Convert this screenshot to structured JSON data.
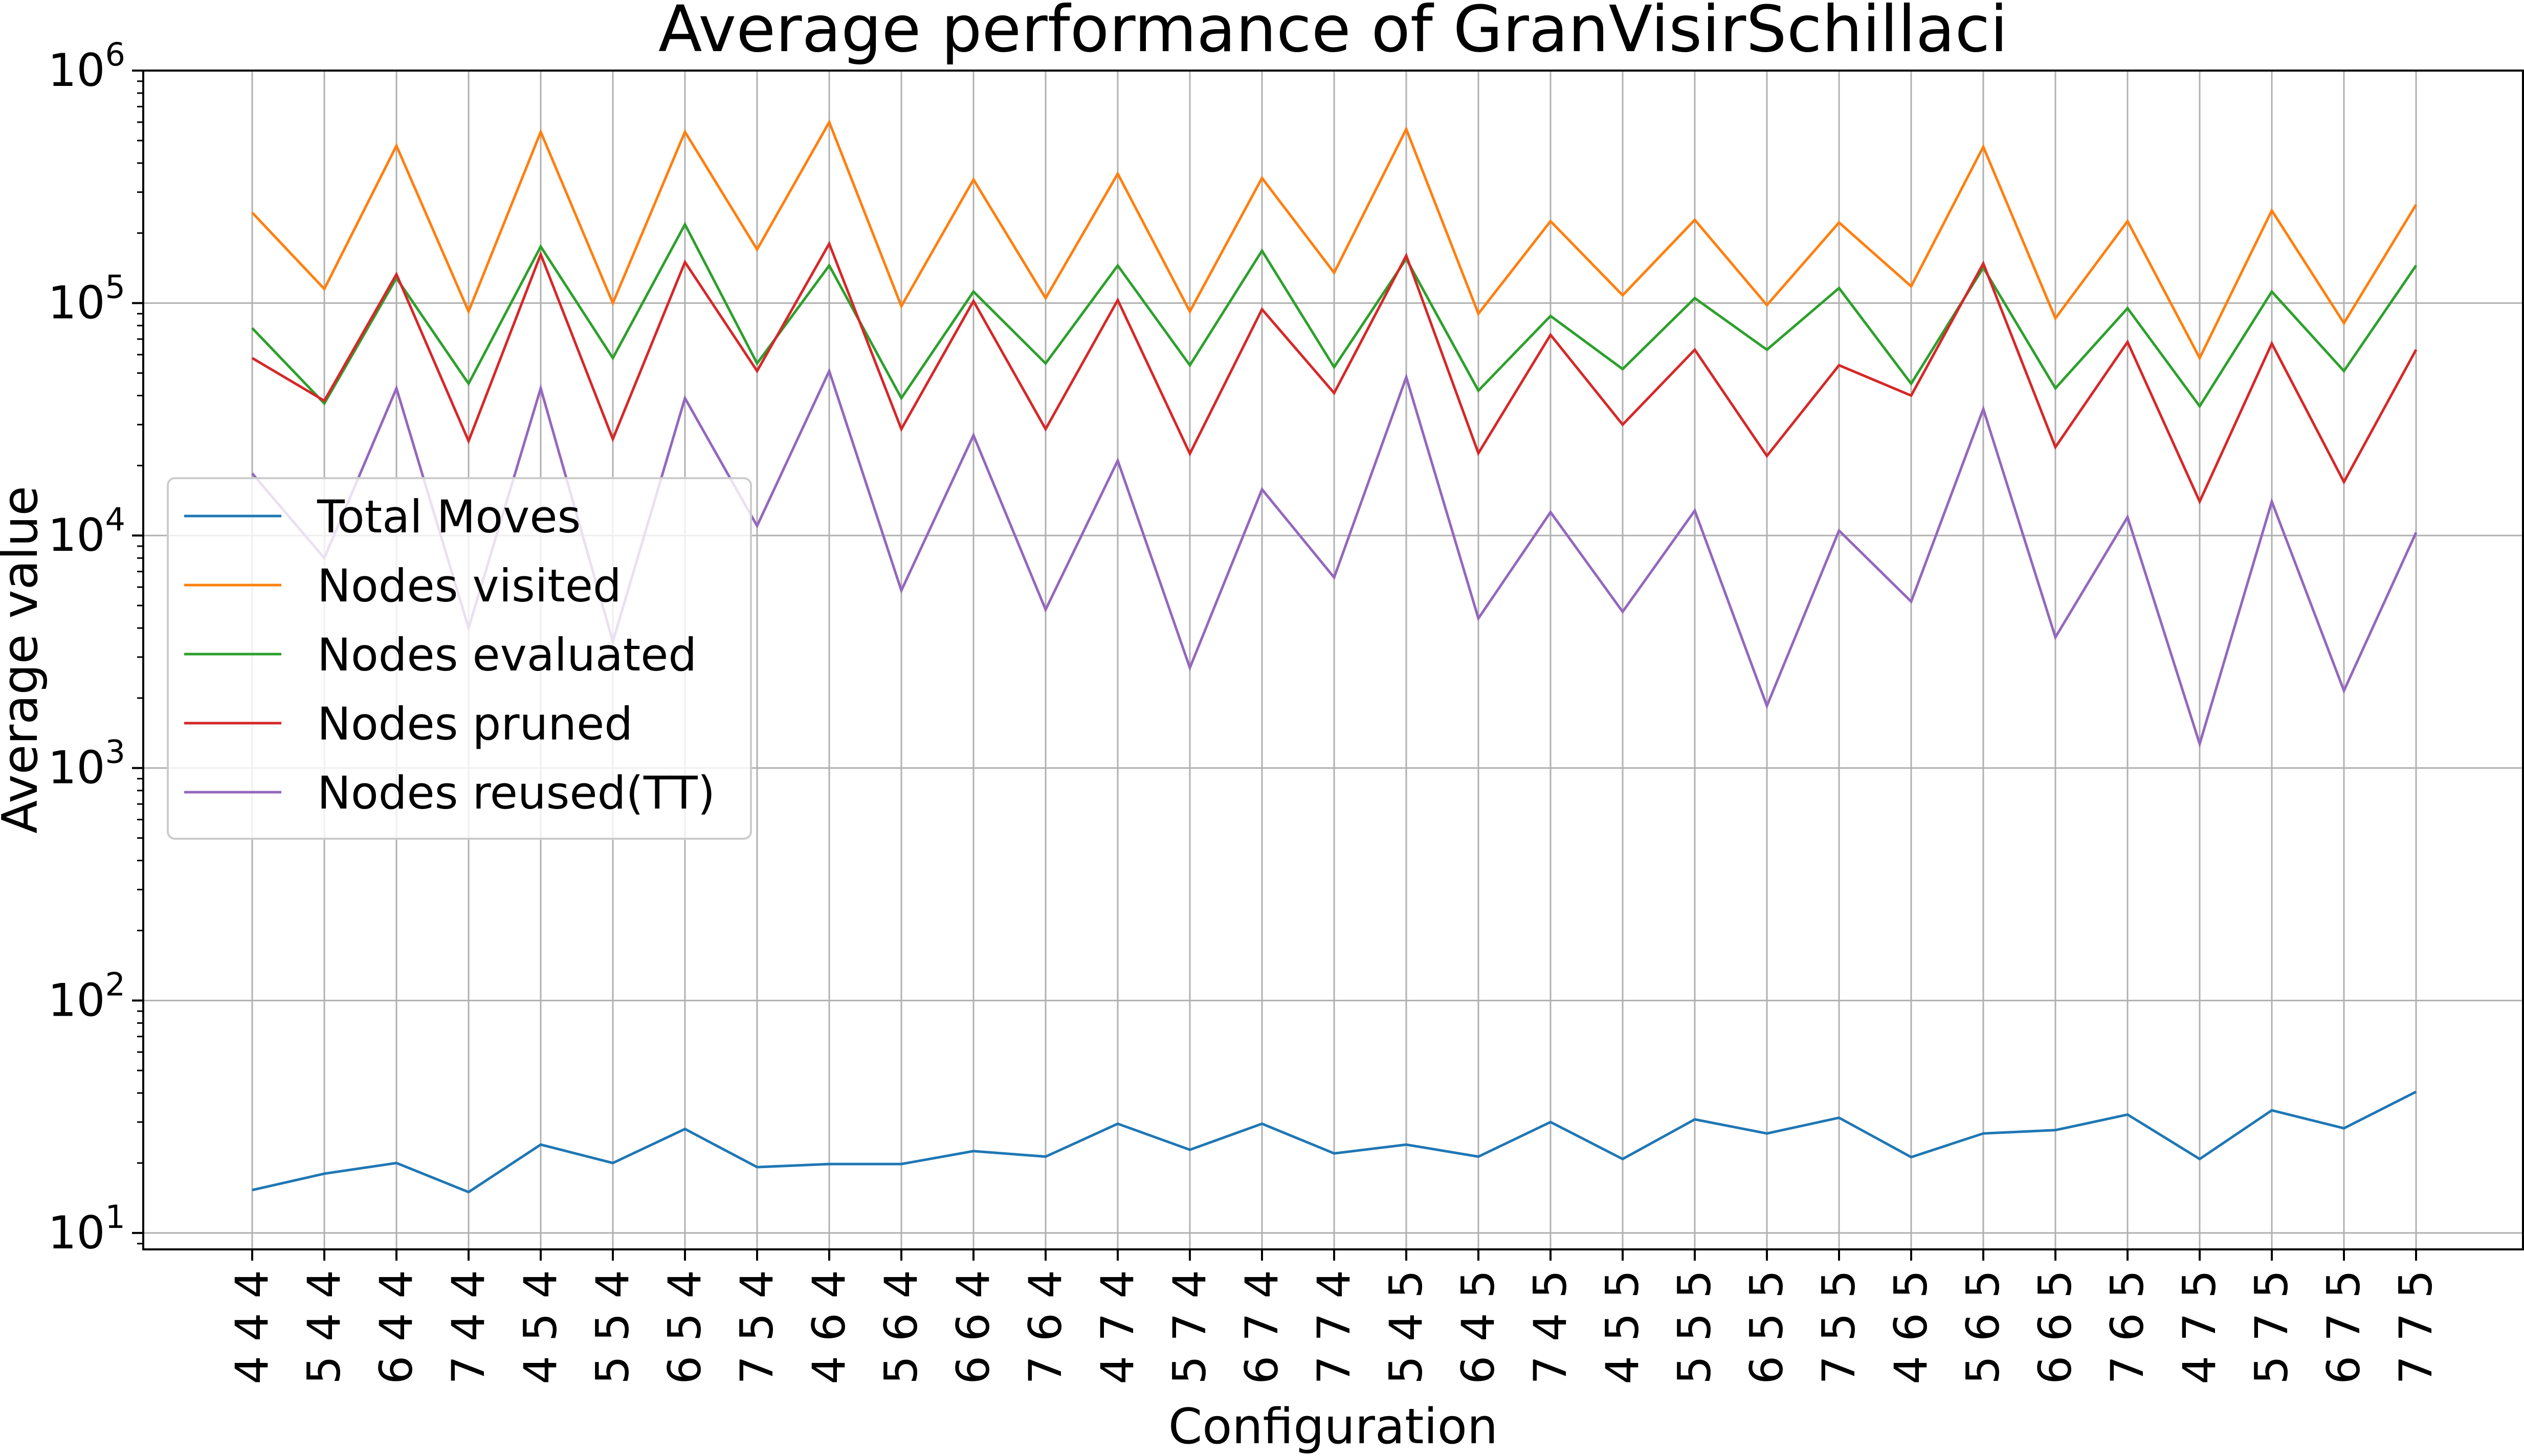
{
  "chart_data": {
    "type": "line",
    "title": "Average performance of GranVisirSchillaci",
    "xlabel": "Configuration",
    "ylabel": "Average value",
    "yscale": "log",
    "ylim": [
      8.5,
      1000000
    ],
    "grid": true,
    "legend": {
      "position": "center-left"
    },
    "categories": [
      "4 4 4",
      "5 4 4",
      "6 4 4",
      "7 4 4",
      "4 5 4",
      "5 5 4",
      "6 5 4",
      "7 5 4",
      "4 6 4",
      "5 6 4",
      "6 6 4",
      "7 6 4",
      "4 7 4",
      "5 7 4",
      "6 7 4",
      "7 7 4",
      "5 4 5",
      "6 4 5",
      "7 4 5",
      "4 5 5",
      "5 5 5",
      "6 5 5",
      "7 5 5",
      "4 6 5",
      "5 6 5",
      "6 6 5",
      "7 6 5",
      "4 7 5",
      "5 7 5",
      "6 7 5",
      "7 7 5"
    ],
    "y_ticks": [
      {
        "value": 10,
        "base": "10",
        "exp": "1"
      },
      {
        "value": 100,
        "base": "10",
        "exp": "2"
      },
      {
        "value": 1000,
        "base": "10",
        "exp": "3"
      },
      {
        "value": 10000,
        "base": "10",
        "exp": "4"
      },
      {
        "value": 100000,
        "base": "10",
        "exp": "5"
      },
      {
        "value": 1000000,
        "base": "10",
        "exp": "6"
      }
    ],
    "series": [
      {
        "name": "Total Moves",
        "color": "#1f77b4",
        "values": [
          15.3,
          18,
          20,
          15,
          24,
          20,
          28,
          19.2,
          19.8,
          19.8,
          22.5,
          21.3,
          29.5,
          22.8,
          29.5,
          22,
          24,
          21.3,
          30,
          20.8,
          30.8,
          26.8,
          31.3,
          21.2,
          26.8,
          27.7,
          32.3,
          20.8,
          33.7,
          28.2,
          40.5
        ]
      },
      {
        "name": "Nodes visited",
        "color": "#ff7f0e",
        "values": [
          245000,
          115000,
          475000,
          92000,
          545000,
          100000,
          545000,
          170000,
          600000,
          97000,
          340000,
          105000,
          360000,
          92000,
          345000,
          135000,
          560000,
          90000,
          225000,
          108000,
          228000,
          98000,
          222000,
          118000,
          470000,
          86000,
          225000,
          58000,
          250000,
          82000,
          265000
        ]
      },
      {
        "name": "Nodes evaluated",
        "color": "#2ca02c",
        "values": [
          78000,
          37000,
          128000,
          45000,
          175000,
          58000,
          218000,
          55000,
          145000,
          39000,
          112000,
          55000,
          145000,
          54000,
          168000,
          53000,
          155000,
          42000,
          88000,
          52000,
          105000,
          63000,
          116000,
          45000,
          142000,
          43000,
          95000,
          36000,
          112000,
          51000,
          145000
        ]
      },
      {
        "name": "Nodes pruned",
        "color": "#d62728",
        "values": [
          58000,
          38000,
          133000,
          25500,
          162000,
          26000,
          150000,
          51000,
          180000,
          28700,
          102000,
          28700,
          103000,
          22500,
          94000,
          41000,
          160000,
          22600,
          73000,
          30000,
          63000,
          22000,
          54000,
          40000,
          148000,
          24000,
          68000,
          14000,
          67000,
          17000,
          63000
        ]
      },
      {
        "name": "Nodes reused(TT)",
        "color": "#9467bd",
        "values": [
          18500,
          8000,
          43000,
          4000,
          43000,
          3500,
          39000,
          11000,
          51000,
          5800,
          27000,
          4800,
          21000,
          2700,
          15800,
          6600,
          48000,
          4400,
          12600,
          4700,
          12800,
          1850,
          10500,
          5200,
          35000,
          3650,
          12000,
          1270,
          14000,
          2150,
          10300
        ]
      }
    ]
  }
}
